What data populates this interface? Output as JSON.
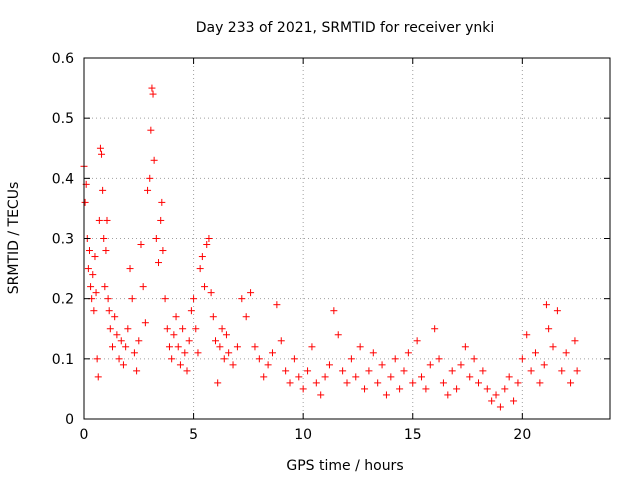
{
  "chart_data": {
    "type": "scatter",
    "title": "Day 233 of 2021, SRMTID for receiver ynki",
    "xlabel": "GPS time / hours",
    "ylabel": "SRMTID / TECUs",
    "xlim": [
      0,
      24
    ],
    "ylim": [
      0,
      0.6
    ],
    "xticks": [
      0,
      5,
      10,
      15,
      20
    ],
    "yticks": [
      0,
      0.1,
      0.2,
      0.3,
      0.4,
      0.5,
      0.6
    ],
    "xtick_labels": [
      "0",
      "5",
      "10",
      "15",
      "20"
    ],
    "ytick_labels": [
      "0",
      "0.1",
      "0.2",
      "0.3",
      "0.4",
      "0.5",
      "0.6"
    ],
    "grid": true,
    "marker": "+",
    "color": "#ff0000",
    "series": [
      {
        "name": "SRMTID",
        "points": [
          [
            0.0,
            0.42
          ],
          [
            0.05,
            0.36
          ],
          [
            0.1,
            0.39
          ],
          [
            0.15,
            0.3
          ],
          [
            0.2,
            0.25
          ],
          [
            0.25,
            0.28
          ],
          [
            0.3,
            0.22
          ],
          [
            0.35,
            0.2
          ],
          [
            0.4,
            0.24
          ],
          [
            0.45,
            0.18
          ],
          [
            0.5,
            0.27
          ],
          [
            0.55,
            0.21
          ],
          [
            0.6,
            0.1
          ],
          [
            0.65,
            0.07
          ],
          [
            0.7,
            0.33
          ],
          [
            0.75,
            0.45
          ],
          [
            0.8,
            0.44
          ],
          [
            0.85,
            0.38
          ],
          [
            0.9,
            0.3
          ],
          [
            0.95,
            0.22
          ],
          [
            1.0,
            0.28
          ],
          [
            1.05,
            0.33
          ],
          [
            1.1,
            0.2
          ],
          [
            1.15,
            0.18
          ],
          [
            1.2,
            0.15
          ],
          [
            1.3,
            0.12
          ],
          [
            1.4,
            0.17
          ],
          [
            1.5,
            0.14
          ],
          [
            1.6,
            0.1
          ],
          [
            1.7,
            0.13
          ],
          [
            1.8,
            0.09
          ],
          [
            1.9,
            0.12
          ],
          [
            2.0,
            0.15
          ],
          [
            2.1,
            0.25
          ],
          [
            2.2,
            0.2
          ],
          [
            2.3,
            0.11
          ],
          [
            2.4,
            0.08
          ],
          [
            2.5,
            0.13
          ],
          [
            2.6,
            0.29
          ],
          [
            2.7,
            0.22
          ],
          [
            2.8,
            0.16
          ],
          [
            2.9,
            0.38
          ],
          [
            3.0,
            0.4
          ],
          [
            3.05,
            0.48
          ],
          [
            3.1,
            0.55
          ],
          [
            3.15,
            0.54
          ],
          [
            3.2,
            0.43
          ],
          [
            3.3,
            0.3
          ],
          [
            3.4,
            0.26
          ],
          [
            3.5,
            0.33
          ],
          [
            3.55,
            0.36
          ],
          [
            3.6,
            0.28
          ],
          [
            3.7,
            0.2
          ],
          [
            3.8,
            0.15
          ],
          [
            3.9,
            0.12
          ],
          [
            4.0,
            0.1
          ],
          [
            4.1,
            0.14
          ],
          [
            4.2,
            0.17
          ],
          [
            4.3,
            0.12
          ],
          [
            4.4,
            0.09
          ],
          [
            4.5,
            0.15
          ],
          [
            4.6,
            0.11
          ],
          [
            4.7,
            0.08
          ],
          [
            4.8,
            0.13
          ],
          [
            4.9,
            0.18
          ],
          [
            5.0,
            0.2
          ],
          [
            5.1,
            0.15
          ],
          [
            5.2,
            0.11
          ],
          [
            5.3,
            0.25
          ],
          [
            5.4,
            0.27
          ],
          [
            5.5,
            0.22
          ],
          [
            5.6,
            0.29
          ],
          [
            5.7,
            0.3
          ],
          [
            5.8,
            0.21
          ],
          [
            5.9,
            0.17
          ],
          [
            6.0,
            0.13
          ],
          [
            6.1,
            0.06
          ],
          [
            6.2,
            0.12
          ],
          [
            6.3,
            0.15
          ],
          [
            6.4,
            0.1
          ],
          [
            6.5,
            0.14
          ],
          [
            6.6,
            0.11
          ],
          [
            6.8,
            0.09
          ],
          [
            7.0,
            0.12
          ],
          [
            7.2,
            0.2
          ],
          [
            7.4,
            0.17
          ],
          [
            7.6,
            0.21
          ],
          [
            7.8,
            0.12
          ],
          [
            8.0,
            0.1
          ],
          [
            8.2,
            0.07
          ],
          [
            8.4,
            0.09
          ],
          [
            8.6,
            0.11
          ],
          [
            8.8,
            0.19
          ],
          [
            9.0,
            0.13
          ],
          [
            9.2,
            0.08
          ],
          [
            9.4,
            0.06
          ],
          [
            9.6,
            0.1
          ],
          [
            9.8,
            0.07
          ],
          [
            10.0,
            0.05
          ],
          [
            10.2,
            0.08
          ],
          [
            10.4,
            0.12
          ],
          [
            10.6,
            0.06
          ],
          [
            10.8,
            0.04
          ],
          [
            11.0,
            0.07
          ],
          [
            11.2,
            0.09
          ],
          [
            11.4,
            0.18
          ],
          [
            11.6,
            0.14
          ],
          [
            11.8,
            0.08
          ],
          [
            12.0,
            0.06
          ],
          [
            12.2,
            0.1
          ],
          [
            12.4,
            0.07
          ],
          [
            12.6,
            0.12
          ],
          [
            12.8,
            0.05
          ],
          [
            13.0,
            0.08
          ],
          [
            13.2,
            0.11
          ],
          [
            13.4,
            0.06
          ],
          [
            13.6,
            0.09
          ],
          [
            13.8,
            0.04
          ],
          [
            14.0,
            0.07
          ],
          [
            14.2,
            0.1
          ],
          [
            14.4,
            0.05
          ],
          [
            14.6,
            0.08
          ],
          [
            14.8,
            0.11
          ],
          [
            15.0,
            0.06
          ],
          [
            15.2,
            0.13
          ],
          [
            15.4,
            0.07
          ],
          [
            15.6,
            0.05
          ],
          [
            15.8,
            0.09
          ],
          [
            16.0,
            0.15
          ],
          [
            16.2,
            0.1
          ],
          [
            16.4,
            0.06
          ],
          [
            16.6,
            0.04
          ],
          [
            16.8,
            0.08
          ],
          [
            17.0,
            0.05
          ],
          [
            17.2,
            0.09
          ],
          [
            17.4,
            0.12
          ],
          [
            17.6,
            0.07
          ],
          [
            17.8,
            0.1
          ],
          [
            18.0,
            0.06
          ],
          [
            18.2,
            0.08
          ],
          [
            18.4,
            0.05
          ],
          [
            18.6,
            0.03
          ],
          [
            18.8,
            0.04
          ],
          [
            19.0,
            0.02
          ],
          [
            19.2,
            0.05
          ],
          [
            19.4,
            0.07
          ],
          [
            19.6,
            0.03
          ],
          [
            19.8,
            0.06
          ],
          [
            20.0,
            0.1
          ],
          [
            20.2,
            0.14
          ],
          [
            20.4,
            0.08
          ],
          [
            20.6,
            0.11
          ],
          [
            20.8,
            0.06
          ],
          [
            21.0,
            0.09
          ],
          [
            21.1,
            0.19
          ],
          [
            21.2,
            0.15
          ],
          [
            21.4,
            0.12
          ],
          [
            21.6,
            0.18
          ],
          [
            21.8,
            0.08
          ],
          [
            22.0,
            0.11
          ],
          [
            22.2,
            0.06
          ],
          [
            22.4,
            0.13
          ],
          [
            22.5,
            0.08
          ]
        ]
      }
    ]
  }
}
